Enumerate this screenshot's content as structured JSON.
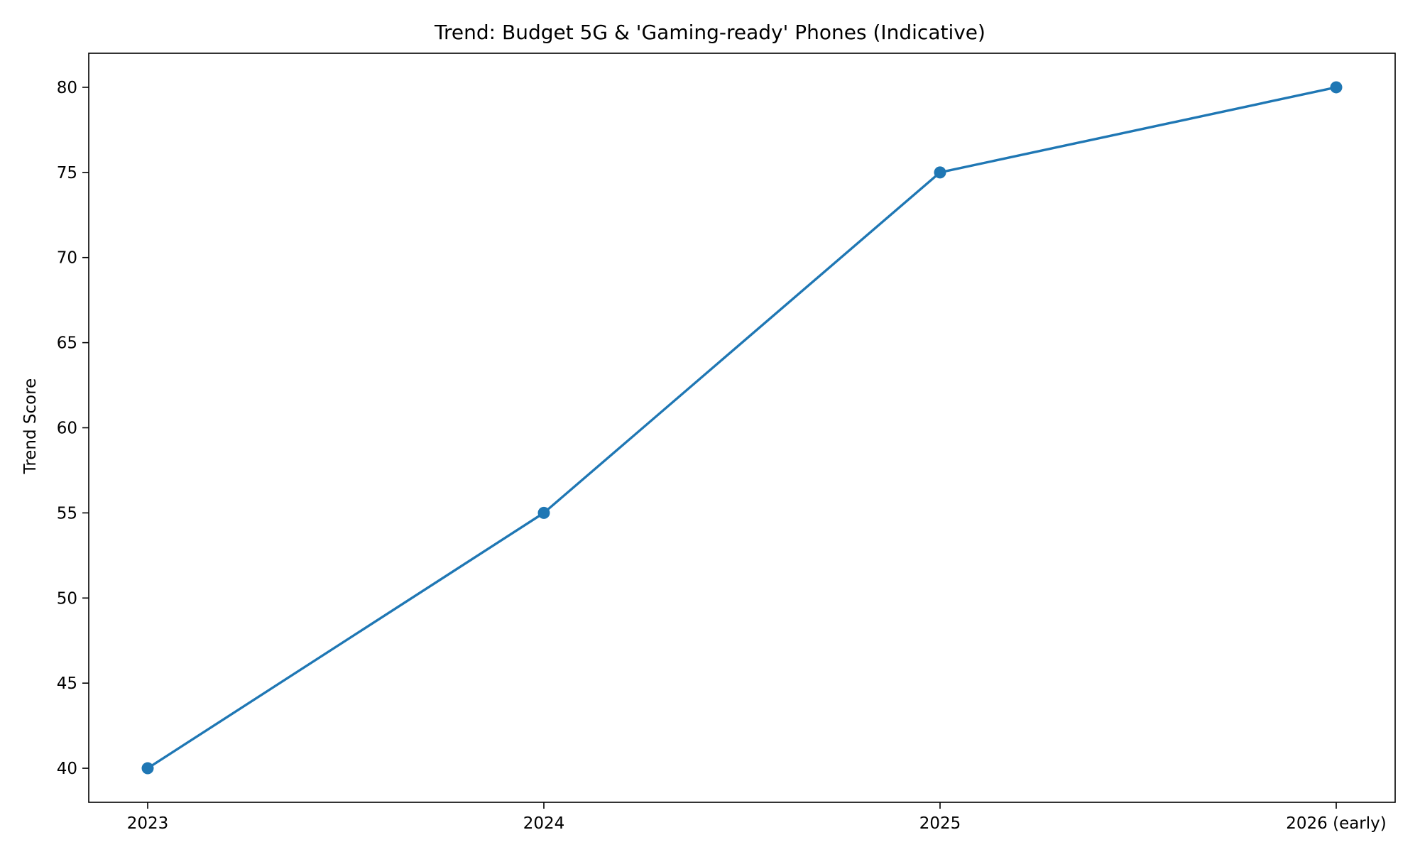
{
  "chart_data": {
    "type": "line",
    "title": "Trend: Budget 5G & 'Gaming-ready' Phones (Indicative)",
    "xlabel": "",
    "ylabel": "Trend Score",
    "categories": [
      "2023",
      "2024",
      "2025",
      "2026 (early)"
    ],
    "series": [
      {
        "values": [
          40,
          55,
          75,
          80
        ],
        "color": "#1f77b4",
        "marker": "circle"
      }
    ],
    "yticks": [
      "40",
      "45",
      "50",
      "55",
      "60",
      "65",
      "70",
      "75",
      "80"
    ],
    "ylim": [
      38,
      82
    ],
    "grid": false,
    "legend": "none"
  }
}
